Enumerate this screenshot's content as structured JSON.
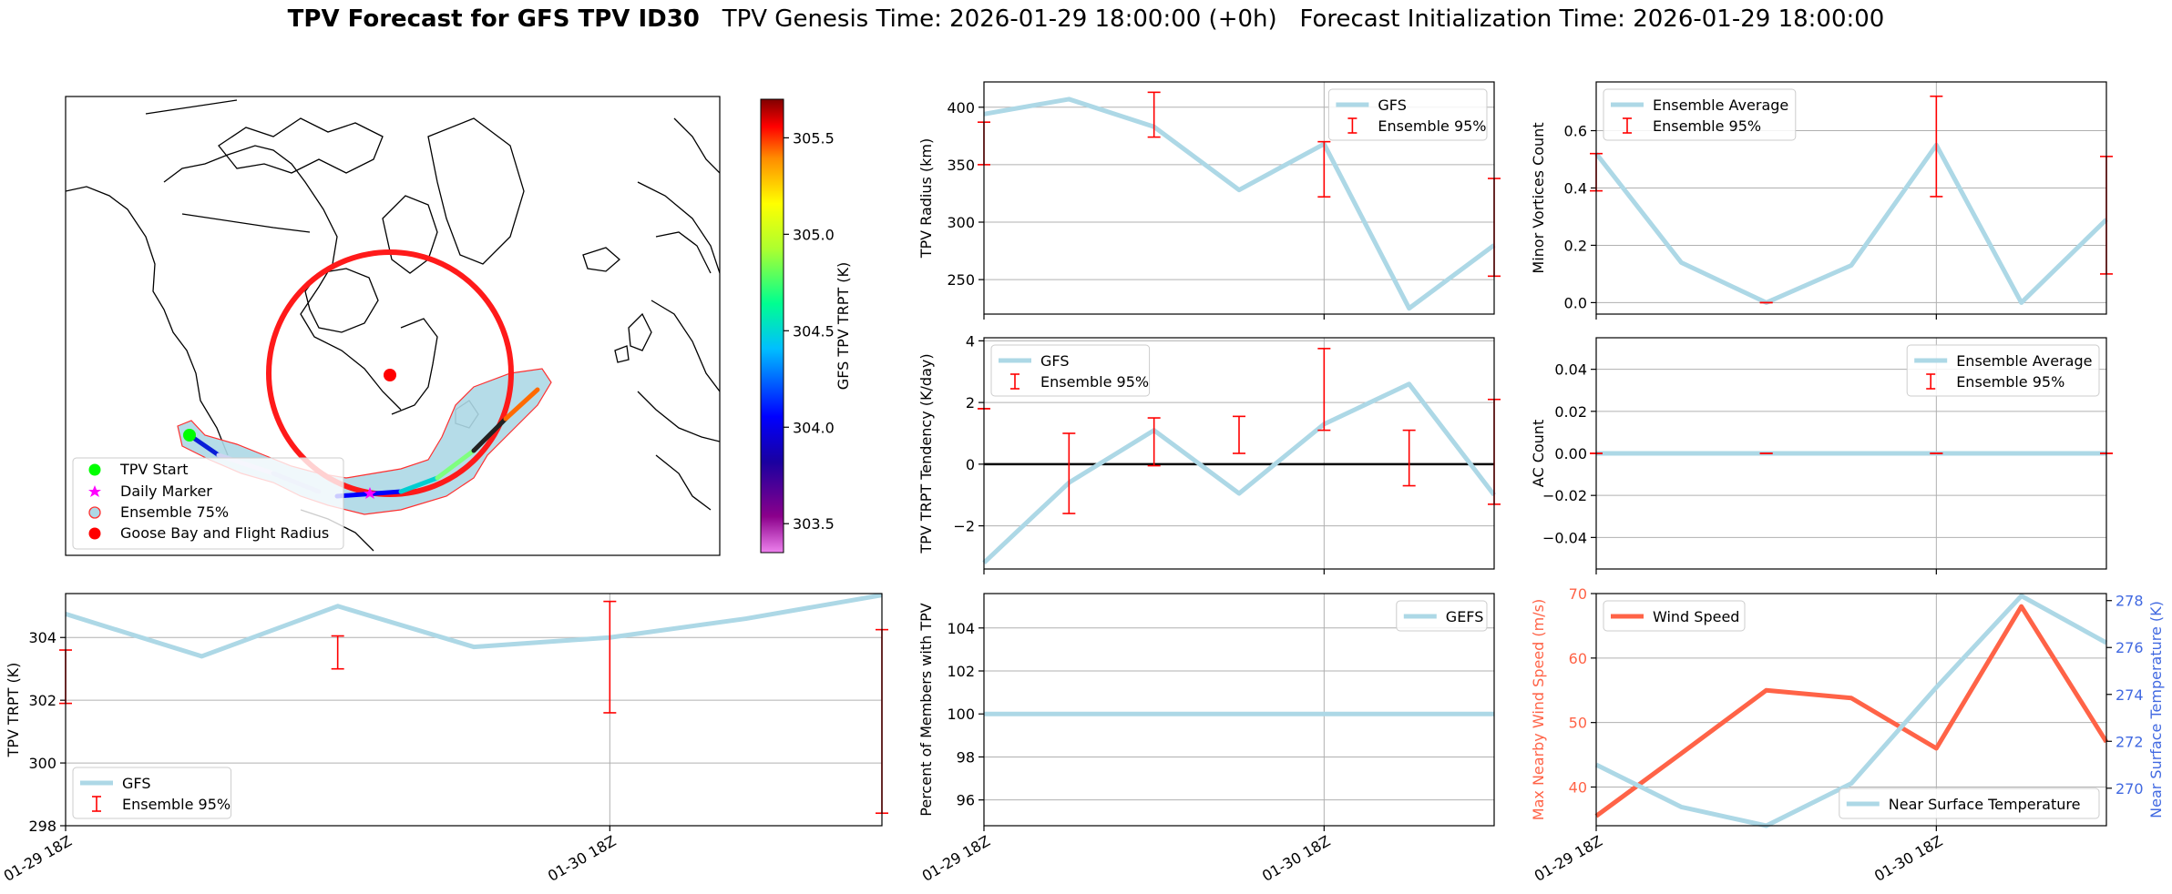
{
  "title": {
    "bold": "TPV Forecast for GFS TPV ID30",
    "genesis": "TPV Genesis Time: 2026-01-29 18:00:00 (+0h)",
    "init": "Forecast Initialization Time: 2026-01-29 18:00:00"
  },
  "map": {
    "colorbar_label": "GFS TPV TRPT (K)",
    "colorbar_ticks": [
      "303.5",
      "304.0",
      "304.5",
      "305.0",
      "305.5"
    ],
    "colorbar_range": [
      303.35,
      305.7
    ],
    "legend": [
      "TPV Start",
      "Daily Marker",
      "Ensemble 75%",
      "Goose Bay and Flight Radius"
    ]
  },
  "colors": {
    "series": "#add8e6",
    "error": "#ff0000",
    "wind": "#ff6347",
    "temp_axis": "#4169e1",
    "grid": "#b0b0b0"
  },
  "chart_data": [
    {
      "id": "radius",
      "type": "line",
      "title": "",
      "ylabel": "TPV Radius (km)",
      "xlabel": "",
      "x": [
        0,
        1,
        2,
        3,
        4,
        5,
        6
      ],
      "ylim": [
        220,
        422
      ],
      "yticks": [
        250,
        300,
        350,
        400
      ],
      "series": [
        {
          "name": "GFS",
          "values": [
            394,
            407,
            383,
            328,
            368,
            225,
            280
          ]
        }
      ],
      "errorbars": {
        "name": "Ensemble 95%",
        "x": [
          0,
          2,
          4,
          6
        ],
        "low": [
          350,
          374,
          322,
          253
        ],
        "high": [
          387,
          413,
          370,
          338
        ]
      },
      "legend": "upper right",
      "xticklabels": []
    },
    {
      "id": "minor",
      "type": "line",
      "title": "",
      "ylabel": "Minor Vortices Count",
      "xlabel": "",
      "x": [
        0,
        1,
        2,
        3,
        4,
        5,
        6
      ],
      "ylim": [
        -0.04,
        0.77
      ],
      "yticks": [
        0.0,
        0.2,
        0.4,
        0.6
      ],
      "ytick_labels": [
        "0.0",
        "0.2",
        "0.4",
        "0.6"
      ],
      "series": [
        {
          "name": "Ensemble Average",
          "values": [
            0.52,
            0.14,
            0.0,
            0.13,
            0.55,
            0.0,
            0.29
          ]
        }
      ],
      "errorbars": {
        "name": "Ensemble 95%",
        "x": [
          0,
          2,
          4,
          6
        ],
        "low": [
          0.39,
          0.0,
          0.37,
          0.1
        ],
        "high": [
          0.52,
          0.0,
          0.72,
          0.51
        ]
      },
      "legend": "upper left",
      "xticklabels": []
    },
    {
      "id": "tendency",
      "type": "line",
      "title": "",
      "ylabel": "TPV TRPT Tendency (K/day)",
      "xlabel": "",
      "x": [
        0,
        1,
        2,
        3,
        4,
        5,
        6
      ],
      "ylim": [
        -3.4,
        4.1
      ],
      "yticks": [
        -2,
        0,
        2,
        4
      ],
      "ytick_labels": [
        "−2",
        "0",
        "2",
        "4"
      ],
      "zero_line": true,
      "series": [
        {
          "name": "GFS",
          "values": [
            -3.2,
            -0.6,
            1.1,
            -0.95,
            1.3,
            2.6,
            -1.0
          ]
        }
      ],
      "errorbars": {
        "name": "Ensemble 95%",
        "x": [
          0,
          1,
          2,
          3,
          4,
          5,
          6
        ],
        "low": [
          1.8,
          -1.6,
          -0.05,
          0.35,
          1.1,
          -0.7,
          -1.3
        ],
        "high": [
          1.8,
          1.0,
          1.5,
          1.55,
          3.75,
          1.1,
          2.1
        ]
      },
      "legend": "upper left",
      "xticklabels": []
    },
    {
      "id": "ac",
      "type": "line",
      "title": "",
      "ylabel": "AC Count",
      "xlabel": "",
      "x": [
        0,
        1,
        2,
        3,
        4,
        5,
        6
      ],
      "ylim": [
        -0.055,
        0.055
      ],
      "yticks": [
        -0.04,
        -0.02,
        0.0,
        0.02,
        0.04
      ],
      "ytick_labels": [
        "−0.04",
        "−0.02",
        "0.00",
        "0.02",
        "0.04"
      ],
      "series": [
        {
          "name": "Ensemble Average",
          "values": [
            0,
            0,
            0,
            0,
            0,
            0,
            0
          ]
        }
      ],
      "errorbars": {
        "name": "Ensemble 95%",
        "x": [
          0,
          2,
          4,
          6
        ],
        "low": [
          0,
          0,
          0,
          0
        ],
        "high": [
          0,
          0,
          0,
          0
        ]
      },
      "legend": "upper right",
      "xticklabels": []
    },
    {
      "id": "trpt",
      "type": "line",
      "title": "",
      "ylabel": "TPV TRPT (K)",
      "xlabel": "",
      "x": [
        0,
        1,
        2,
        3,
        4,
        5,
        6
      ],
      "ylim": [
        298,
        305.4
      ],
      "yticks": [
        298,
        300,
        302,
        304
      ],
      "series": [
        {
          "name": "GFS",
          "values": [
            304.75,
            303.4,
            305.0,
            303.7,
            304.0,
            304.6,
            305.35
          ]
        }
      ],
      "errorbars": {
        "name": "Ensemble 95%",
        "x": [
          0,
          2,
          4,
          6
        ],
        "low": [
          301.9,
          303.0,
          301.6,
          298.4
        ],
        "high": [
          303.6,
          304.05,
          305.15,
          304.25
        ]
      },
      "legend": "lower left",
      "xticklabels": [
        "01-29 18Z",
        "01-30 18Z"
      ]
    },
    {
      "id": "members",
      "type": "line",
      "title": "",
      "ylabel": "Percent of Members with TPV",
      "xlabel": "",
      "x": [
        0,
        1,
        2,
        3,
        4,
        5,
        6
      ],
      "ylim": [
        94.8,
        105.6
      ],
      "yticks": [
        96,
        98,
        100,
        102,
        104
      ],
      "series": [
        {
          "name": "GEFS",
          "values": [
            100,
            100,
            100,
            100,
            100,
            100,
            100
          ]
        }
      ],
      "legend": "upper right",
      "xticklabels": [
        "01-29 18Z",
        "01-30 18Z"
      ]
    },
    {
      "id": "wind",
      "type": "line",
      "title": "",
      "ylabel": "Max Nearby Wind Speed (m/s)",
      "y2label": "Near Surface Temperature (K)",
      "xlabel": "",
      "x": [
        0,
        1,
        2,
        3,
        4,
        5,
        6
      ],
      "ylim": [
        34,
        70
      ],
      "yticks": [
        40,
        50,
        60,
        70
      ],
      "y2lim": [
        268.4,
        278.3
      ],
      "y2ticks": [
        270,
        272,
        274,
        276,
        278
      ],
      "series": [
        {
          "name": "Wind Speed",
          "values": [
            35.5,
            45.2,
            55.0,
            53.8,
            46.0,
            68.0,
            47.0
          ]
        }
      ],
      "series2": [
        {
          "name": "Near Surface Temperature",
          "values": [
            271.0,
            269.2,
            268.4,
            270.2,
            274.3,
            278.2,
            276.2
          ]
        }
      ],
      "xticklabels": [
        "01-29 18Z",
        "01-30 18Z"
      ]
    }
  ]
}
